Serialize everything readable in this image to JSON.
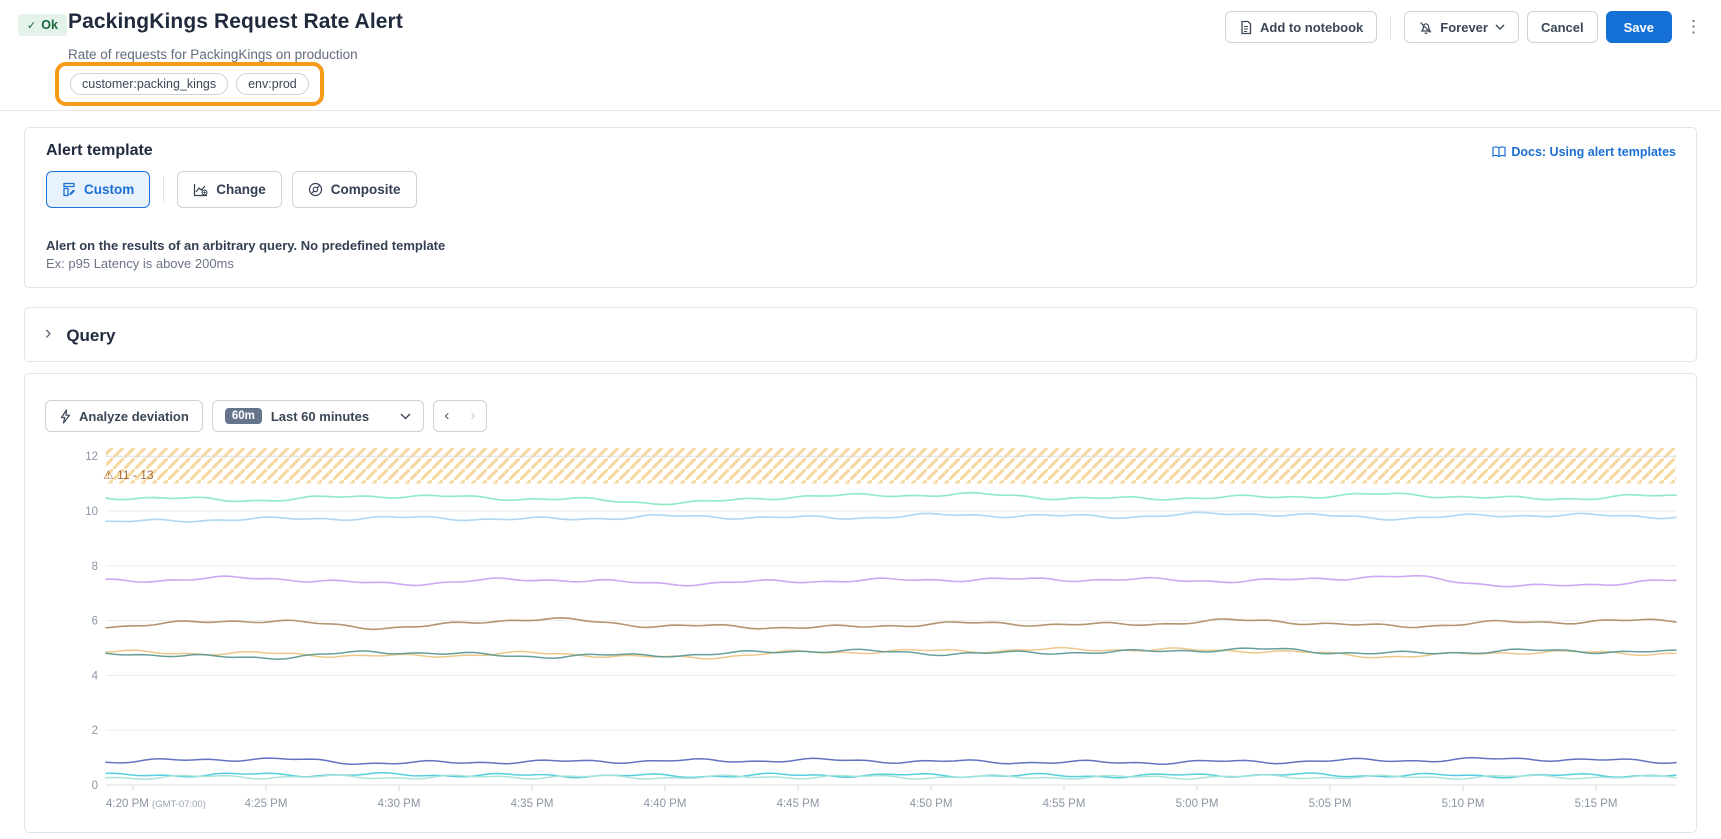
{
  "header": {
    "status": "Ok",
    "title": "PackingKings Request Rate Alert",
    "subtitle": "Rate of requests for PackingKings on production",
    "tags": [
      "customer:packing_kings",
      "env:prod"
    ],
    "actions": {
      "add_to_notebook": "Add to notebook",
      "mute": "Forever",
      "cancel": "Cancel",
      "save": "Save"
    }
  },
  "alert_template": {
    "heading": "Alert template",
    "docs_link": "Docs: Using alert templates",
    "options": [
      {
        "label": "Custom",
        "selected": true
      },
      {
        "label": "Change",
        "selected": false
      },
      {
        "label": "Composite",
        "selected": false
      }
    ],
    "description_bold": "Alert on the results of an arbitrary query. No predefined template",
    "description_example": "Ex: p95 Latency is above 200ms"
  },
  "query_section": {
    "heading": "Query"
  },
  "chart_toolbar": {
    "analyze_button": "Analyze deviation",
    "range_badge": "60m",
    "range_label": "Last 60 minutes"
  },
  "colors": {
    "accent_blue": "#1570d6",
    "highlight_orange": "#f59b18",
    "ok_green_bg": "#e4f3e9",
    "ok_green_text": "#17663e",
    "band_hatch": "#f6d9a2",
    "band_label_text": "#a36a41"
  },
  "chart_data": {
    "type": "line",
    "title": "",
    "xlabel": "",
    "ylabel": "",
    "x": [
      "4:20 PM",
      "4:25 PM",
      "4:30 PM",
      "4:35 PM",
      "4:40 PM",
      "4:45 PM",
      "4:50 PM",
      "4:55 PM",
      "5:00 PM",
      "5:05 PM",
      "5:10 PM",
      "5:15 PM"
    ],
    "x_first_suffix": "(GMT-07:00)",
    "ylim": [
      0,
      12.3
    ],
    "yticks": [
      0,
      2,
      4,
      6,
      8,
      10,
      12
    ],
    "grid": true,
    "legend": "none",
    "warning_band": {
      "from": 11,
      "to": 13,
      "label": "11 - 13"
    },
    "series": [
      {
        "name": "mint",
        "color": "#8ce9c4",
        "width": 1.7,
        "values": [
          10.5,
          10.4,
          10.55,
          10.45,
          10.3,
          10.55,
          10.6,
          10.45,
          10.5,
          10.6,
          10.45,
          10.55
        ]
      },
      {
        "name": "sky-blue",
        "color": "#aed7f2",
        "width": 1.7,
        "values": [
          9.6,
          9.7,
          9.75,
          9.7,
          9.8,
          9.75,
          9.85,
          9.8,
          9.9,
          9.75,
          9.85,
          9.8
        ]
      },
      {
        "name": "purple",
        "color": "#c9a4ef",
        "width": 1.6,
        "values": [
          7.45,
          7.55,
          7.35,
          7.5,
          7.35,
          7.45,
          7.5,
          7.5,
          7.45,
          7.6,
          7.25,
          7.45
        ]
      },
      {
        "name": "brown",
        "color": "#b08f68",
        "width": 1.6,
        "values": [
          5.8,
          6.0,
          5.75,
          6.05,
          5.8,
          5.75,
          5.9,
          5.85,
          6.0,
          5.8,
          5.95,
          6.0
        ]
      },
      {
        "name": "orange",
        "color": "#edc584",
        "width": 1.5,
        "values": [
          4.85,
          4.8,
          4.7,
          4.8,
          4.65,
          4.85,
          4.9,
          4.95,
          4.9,
          4.7,
          4.85,
          4.8
        ]
      },
      {
        "name": "teal",
        "color": "#5d9a95",
        "width": 1.5,
        "values": [
          4.8,
          4.65,
          4.85,
          4.7,
          4.75,
          4.9,
          4.8,
          4.85,
          4.95,
          4.8,
          4.9,
          4.85
        ]
      },
      {
        "name": "indigo",
        "color": "#5b6cc0",
        "width": 1.5,
        "values": [
          0.85,
          0.95,
          0.8,
          0.85,
          0.88,
          0.9,
          0.85,
          0.82,
          0.85,
          0.9,
          0.95,
          0.85
        ]
      },
      {
        "name": "cyan",
        "color": "#4ecbdb",
        "width": 1.5,
        "values": [
          0.35,
          0.38,
          0.37,
          0.35,
          0.33,
          0.36,
          0.35,
          0.33,
          0.37,
          0.35,
          0.34,
          0.36
        ]
      },
      {
        "name": "pale-teal",
        "color": "#a8e2da",
        "width": 1.5,
        "values": [
          0.28,
          0.3,
          0.28,
          0.3,
          0.28,
          0.3,
          0.29,
          0.28,
          0.3,
          0.28,
          0.3,
          0.28
        ]
      }
    ]
  }
}
